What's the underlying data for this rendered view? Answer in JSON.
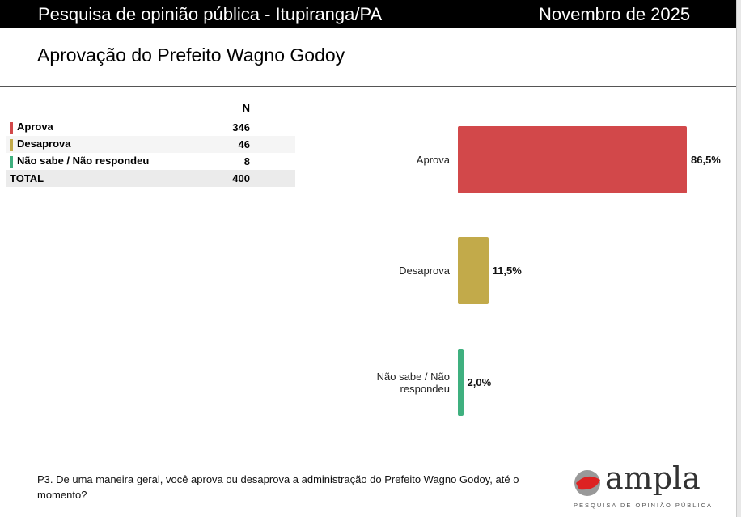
{
  "header": {
    "left": "Pesquisa de opinião pública - Itupiranga/PA",
    "right": "Novembro de 2025"
  },
  "title": "Aprovação do Prefeito Wagno Godoy",
  "table": {
    "col": "N",
    "rows": [
      {
        "label": "Aprova",
        "n": "346",
        "color": "#d2484a"
      },
      {
        "label": "Desaprova",
        "n": "46",
        "color": "#c2aa4a"
      },
      {
        "label": "Não sabe / Não respondeu",
        "n": "8",
        "color": "#3fb07f"
      }
    ],
    "total_label": "TOTAL",
    "total": "400"
  },
  "chart_data": {
    "type": "bar",
    "orientation": "horizontal",
    "categories": [
      "Aprova",
      "Desaprova",
      "Não sabe / Não respondeu"
    ],
    "values": [
      86.5,
      11.5,
      2.0
    ],
    "labels": [
      "86,5%",
      "11,5%",
      "2,0%"
    ],
    "colors": [
      "#d2484a",
      "#c2aa4a",
      "#3fb07f"
    ],
    "xlim": [
      0,
      100
    ]
  },
  "question": "P3. De uma maneira geral, você aprova ou desaprova a administração do Prefeito Wagno Godoy, até o momento?",
  "logo": {
    "word": "ampla",
    "tagline": "PESQUISA DE OPINIÃO PÚBLICA"
  }
}
